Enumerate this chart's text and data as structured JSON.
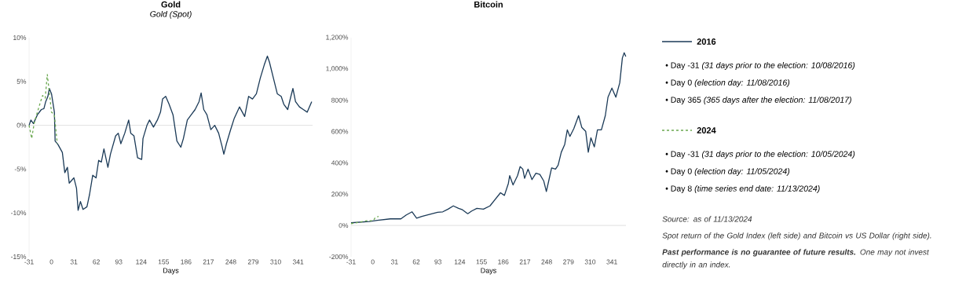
{
  "chart_data": [
    {
      "type": "line",
      "title": "Gold",
      "subtitle": "Gold (Spot)",
      "xlabel": "Days",
      "xlim": [
        -31,
        361
      ],
      "ylim": [
        -15,
        10
      ],
      "xticks": [
        -31,
        0,
        31,
        62,
        93,
        124,
        155,
        186,
        217,
        248,
        279,
        310,
        341
      ],
      "yticks": [
        {
          "value": -15,
          "label": "-15%"
        },
        {
          "value": -10,
          "label": "-10%"
        },
        {
          "value": -5,
          "label": "-5%"
        },
        {
          "value": 0,
          "label": "0%"
        },
        {
          "value": 5,
          "label": "5%"
        },
        {
          "value": 10,
          "label": "10%"
        }
      ],
      "ref_lines": [
        {
          "axis": "y",
          "value": 0,
          "color": "#d9d9d9"
        }
      ],
      "series": [
        {
          "color": "#1b3a57",
          "x": [
            -31,
            -28.5,
            -25,
            -19.5,
            -14,
            -10.5,
            -8,
            -5,
            -3,
            0,
            4,
            5,
            9,
            15,
            18.4,
            22,
            24.5,
            31,
            34.6,
            36.8,
            40,
            43.6,
            49,
            52.6,
            57,
            61.6,
            65.2,
            68.9,
            72.5,
            78,
            81.5,
            88.7,
            92.3,
            95.9,
            101.3,
            106.7,
            109.6,
            114,
            119,
            124.7,
            126.5,
            132,
            135.5,
            141,
            146.4,
            150.7,
            153.6,
            157.9,
            162.6,
            168,
            173.4,
            178.8,
            182.4,
            187.8,
            193.2,
            198.6,
            204,
            206.9,
            210.5,
            214.9,
            220.3,
            225.7,
            231.1,
            235.8,
            238.3,
            241.9,
            247.3,
            252.7,
            259.9,
            267.1,
            272.5,
            277.9,
            283.3,
            288.7,
            294.2,
            298.5,
            301.4,
            306.8,
            312.2,
            317.6,
            321.2,
            326.6,
            331,
            333.8,
            337.4,
            342.8,
            348.2,
            353.6,
            357.2,
            359.8
          ],
          "values": [
            0,
            0.6,
            0.2,
            1.2,
            1.8,
            1.9,
            2.7,
            3.3,
            4.2,
            3.6,
            1.5,
            -1.8,
            -2.2,
            -3.1,
            -5.4,
            -4.8,
            -6.6,
            -6,
            -7.2,
            -9.7,
            -8.7,
            -9.6,
            -9.3,
            -7.9,
            -5.7,
            -6,
            -4,
            -4.2,
            -2.7,
            -4.8,
            -3.3,
            -1.2,
            -0.9,
            -2.1,
            -0.9,
            0.6,
            -0.9,
            -1.2,
            -3.7,
            -3.9,
            -1.5,
            0,
            0.6,
            -0.2,
            0.6,
            1.5,
            3,
            3.3,
            2.4,
            1.2,
            -1.8,
            -2.5,
            -1.5,
            0.6,
            1.2,
            1.8,
            2.7,
            3.7,
            1.8,
            1.2,
            -0.5,
            0,
            -0.9,
            -2.4,
            -3.3,
            -2.1,
            -0.6,
            0.8,
            2.1,
            1,
            3.3,
            3,
            3.6,
            5.4,
            6.9,
            7.9,
            7.2,
            5.4,
            3.6,
            3.3,
            2.4,
            1.8,
            3.3,
            4.2,
            2.7,
            2.1,
            1.8,
            1.5,
            2.2,
            2.7
          ]
        },
        {
          "color": "#6aa84f",
          "line_style": "dashed",
          "x": [
            -31,
            -27.4,
            -23.8,
            -19.5,
            -15.1,
            -12.3,
            -8.7,
            -5.8,
            -3.2,
            0,
            3.9,
            8
          ],
          "values": [
            0,
            -1.5,
            0.3,
            1.5,
            2.7,
            3.4,
            3.1,
            5.8,
            3.9,
            1.5,
            1.2,
            -2.1
          ]
        }
      ]
    },
    {
      "type": "line",
      "title": "Bitcoin",
      "xlabel": "Days",
      "xlim": [
        -31,
        361
      ],
      "ylim": [
        -200,
        1200
      ],
      "legend": "right",
      "xticks": [
        -31,
        0,
        31,
        62,
        93,
        124,
        155,
        186,
        217,
        248,
        279,
        310,
        341
      ],
      "yticks": [
        {
          "value": -200,
          "label": "-200%"
        },
        {
          "value": 0,
          "label": "0%"
        },
        {
          "value": 200,
          "label": "200%"
        },
        {
          "value": 400,
          "label": "400%"
        },
        {
          "value": 600,
          "label": "600%"
        },
        {
          "value": 800,
          "label": "800%"
        },
        {
          "value": 1000,
          "label": "1,000%"
        },
        {
          "value": 1200,
          "label": "1,200%"
        }
      ],
      "ref_lines": [
        {
          "axis": "y",
          "value": 0,
          "color": "#d9d9d9"
        }
      ],
      "series": [
        {
          "name": "2016",
          "color": "#1b3a57",
          "x": [
            -31,
            -4.8,
            6.4,
            25,
            40,
            47.8,
            56,
            62.5,
            70,
            84.9,
            92.4,
            99.8,
            107.3,
            114.8,
            122.3,
            127.9,
            135.4,
            141,
            148.4,
            157.8,
            167.1,
            174.6,
            182.1,
            187.7,
            193.3,
            195.2,
            200,
            206.4,
            210.1,
            213.9,
            216.5,
            221.4,
            227,
            232.6,
            238.2,
            243.8,
            247.5,
            251.3,
            255,
            260.6,
            264.3,
            268.8,
            273.7,
            277.4,
            281.1,
            286.7,
            293.5,
            298,
            303.6,
            307.3,
            311,
            315.9,
            320.4,
            326,
            331.6,
            335.4,
            341,
            346.6,
            352.2,
            355.9,
            358.5,
            360.8
          ],
          "values": [
            17,
            25,
            33,
            42,
            42,
            67,
            87,
            47,
            58,
            75,
            84,
            87,
            104,
            125,
            109,
            100,
            75,
            92,
            109,
            104,
            125,
            167,
            209,
            192,
            268,
            318,
            259,
            318,
            376,
            360,
            301,
            360,
            293,
            334,
            326,
            284,
            217,
            293,
            368,
            360,
            385,
            468,
            518,
            611,
            569,
            619,
            702,
            627,
            602,
            468,
            560,
            502,
            611,
            611,
            702,
            820,
            878,
            820,
            912,
            1070,
            1104,
            1079
          ]
        },
        {
          "name": "2024",
          "color": "#6aa84f",
          "line_style": "dashed",
          "x": [
            -31,
            -19.8,
            -8.6,
            0.8,
            3.4,
            8.3
          ],
          "values": [
            12,
            20,
            30,
            30,
            50,
            58
          ]
        }
      ]
    },
    {
      "type": "other",
      "annotations": [
        "•   Day -31 *(31 days prior to the election: 10/08/2016)*",
        "•   Day 0 *(election day: 11/08/2016)*",
        "•   Day 365 *(365 days after the election: 11/08/2017)*",
        "•   Day -31 *(31 days prior to the election: 10/05/2024)*",
        "•   Day 0 *(election day: 11/05/2024)*",
        "•   Day 8 *(time series end date: 11/13/2024)*",
        "Source: as of 11/13/2024",
        "Spot return of the Gold Index (left side) and Bitcoin vs US Dollar (right side).",
        "**Past performance is no guarantee of future results.** One may not invest directly in an index."
      ]
    }
  ]
}
